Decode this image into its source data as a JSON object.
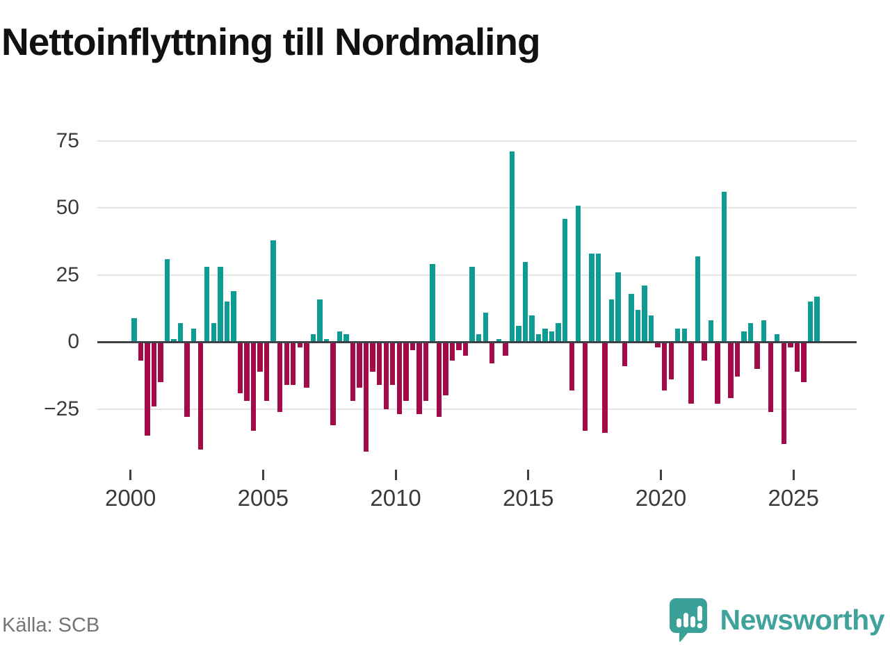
{
  "title": "Nettoinflyttning till Nordmaling",
  "source": "Källa: SCB",
  "brand": {
    "name": "Newsworthy",
    "icon": "bar-chart-speech-bubble-icon"
  },
  "colors": {
    "positive": "#0d9b94",
    "negative": "#a30b48",
    "gridline": "#e4e4e4",
    "zero_line": "#3d4247",
    "axis_text": "#3a3a3a",
    "title_text": "#111111",
    "source_text": "#757575",
    "brand_teal": "#3fa39b"
  },
  "chart_data": {
    "type": "bar",
    "title": "Nettoinflyttning till Nordmaling",
    "xlabel": "",
    "ylabel": "",
    "legend": "none",
    "grid": "horizontal",
    "ylim": [
      -45,
      80
    ],
    "y_ticks": [
      75,
      50,
      25,
      0,
      -25
    ],
    "y_tick_labels": [
      "75",
      "50",
      "25",
      "0",
      "−25"
    ],
    "x_tick_labels": [
      "2000",
      "2005",
      "2010",
      "2015",
      "2020",
      "2025"
    ],
    "frequency": "quarterly",
    "start_period": "2000 Q1",
    "end_period": "2025 Q4",
    "values": [
      9,
      -7,
      -35,
      -24,
      -15,
      31,
      1,
      7,
      -28,
      5,
      -40,
      28,
      7,
      28,
      15,
      19,
      -19,
      -22,
      -33,
      -11,
      -22,
      38,
      -26,
      -16,
      -16,
      -2,
      -17,
      3,
      16,
      1,
      -31,
      4,
      3,
      -22,
      -17,
      -41,
      -11,
      -16,
      -25,
      -16,
      -27,
      -22,
      -3,
      -27,
      -22,
      29,
      -28,
      -20,
      -7,
      -3,
      -5,
      28,
      3,
      11,
      -8,
      1,
      -5,
      71,
      6,
      30,
      10,
      3,
      5,
      4,
      7,
      46,
      -18,
      51,
      -33,
      33,
      33,
      -34,
      16,
      26,
      -9,
      18,
      12,
      21,
      10,
      -2,
      -18,
      -14,
      5,
      5,
      -23,
      32,
      -7,
      8,
      -23,
      56,
      -21,
      -13,
      4,
      7,
      -10,
      8,
      -26,
      3,
      -38,
      -2,
      -11,
      -15,
      15,
      17
    ]
  }
}
